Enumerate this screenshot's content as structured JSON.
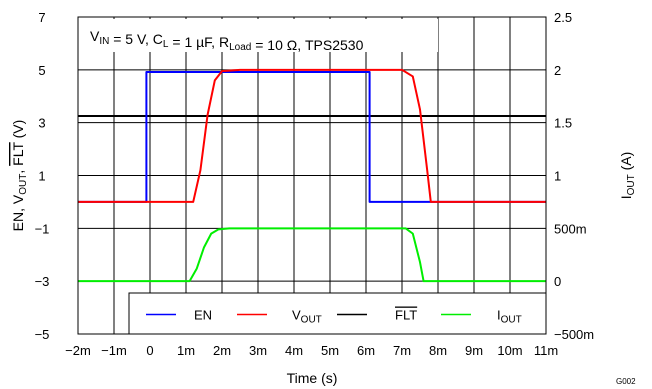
{
  "chart_data": {
    "type": "line",
    "xlabel": "Time (s)",
    "ylabel_left": [
      "EN, V",
      "OUT",
      ", ",
      "FLT",
      " (V)"
    ],
    "ylabel_right": [
      "I",
      "OUT",
      " (A)"
    ],
    "annotation": [
      {
        "t": "V",
        "sub": false
      },
      {
        "t": "IN",
        "sub": true
      },
      {
        "t": " = 5 V, C",
        "sub": false
      },
      {
        "t": "L",
        "sub": true
      },
      {
        "t": " = 1 µF, R",
        "sub": false
      },
      {
        "t": "Load",
        "sub": true
      },
      {
        "t": " = 10 Ω, TPS2530",
        "sub": false
      }
    ],
    "figure_code": "G002",
    "xlim": [
      -0.002,
      0.011
    ],
    "ylim_left": [
      -5,
      7
    ],
    "ylim_right": [
      -0.5,
      2.5
    ],
    "x_ticks": [
      {
        "v": -0.002,
        "label": "−2m"
      },
      {
        "v": -0.001,
        "label": "−1m"
      },
      {
        "v": 0,
        "label": "0"
      },
      {
        "v": 0.001,
        "label": "1m"
      },
      {
        "v": 0.002,
        "label": "2m"
      },
      {
        "v": 0.003,
        "label": "3m"
      },
      {
        "v": 0.004,
        "label": "4m"
      },
      {
        "v": 0.005,
        "label": "5m"
      },
      {
        "v": 0.006,
        "label": "6m"
      },
      {
        "v": 0.007,
        "label": "7m"
      },
      {
        "v": 0.008,
        "label": "8m"
      },
      {
        "v": 0.009,
        "label": "9m"
      },
      {
        "v": 0.01,
        "label": "10m"
      },
      {
        "v": 0.011,
        "label": "11m"
      }
    ],
    "y_left_ticks": [
      {
        "v": -5,
        "label": "−5"
      },
      {
        "v": -3,
        "label": "−3"
      },
      {
        "v": -1,
        "label": "−1"
      },
      {
        "v": 1,
        "label": "1"
      },
      {
        "v": 3,
        "label": "3"
      },
      {
        "v": 5,
        "label": "5"
      },
      {
        "v": 7,
        "label": "7"
      }
    ],
    "y_right_ticks": [
      {
        "v": -0.5,
        "label": "−500m"
      },
      {
        "v": 0,
        "label": "0"
      },
      {
        "v": 0.5,
        "label": "500m"
      },
      {
        "v": 1,
        "label": "1"
      },
      {
        "v": 1.5,
        "label": "1.5"
      },
      {
        "v": 2,
        "label": "2"
      },
      {
        "v": 2.5,
        "label": "2.5"
      }
    ],
    "grid": true,
    "legend_position": "bottom-right",
    "series": [
      {
        "id": "en",
        "legend": [
          {
            "t": "EN",
            "sub": false,
            "over": false
          }
        ],
        "color": "#0000ff",
        "axis": "left",
        "x": [
          -0.002,
          -0.0001,
          -0.0001,
          0.0061,
          0.0061,
          0.011
        ],
        "y": [
          0,
          0,
          4.92,
          4.92,
          0,
          0
        ]
      },
      {
        "id": "vout",
        "legend": [
          {
            "t": "V",
            "sub": false,
            "over": false
          },
          {
            "t": "OUT",
            "sub": true,
            "over": false
          }
        ],
        "color": "#ff0000",
        "axis": "left",
        "x": [
          -0.002,
          0.0012,
          0.0014,
          0.0016,
          0.0018,
          0.002,
          0.0025,
          0.007,
          0.0073,
          0.0075,
          0.0077,
          0.0078,
          0.011
        ],
        "y": [
          0,
          0,
          1.2,
          3.3,
          4.6,
          4.95,
          5.0,
          5.0,
          4.75,
          3.5,
          1.2,
          0,
          0
        ]
      },
      {
        "id": "flt",
        "legend": [
          {
            "t": "FLT",
            "sub": false,
            "over": true
          }
        ],
        "color": "#000000",
        "axis": "left",
        "x": [
          -0.002,
          0.011
        ],
        "y": [
          3.25,
          3.25
        ]
      },
      {
        "id": "iout",
        "legend": [
          {
            "t": "I",
            "sub": false,
            "over": false
          },
          {
            "t": "OUT",
            "sub": true,
            "over": false
          }
        ],
        "color": "#00ee00",
        "axis": "right",
        "x": [
          -0.002,
          0.0011,
          0.0013,
          0.0015,
          0.0017,
          0.0019,
          0.0022,
          0.0071,
          0.0073,
          0.0075,
          0.0076,
          0.011
        ],
        "y": [
          0,
          0,
          0.12,
          0.32,
          0.45,
          0.49,
          0.5,
          0.5,
          0.45,
          0.18,
          0,
          0
        ]
      }
    ]
  }
}
